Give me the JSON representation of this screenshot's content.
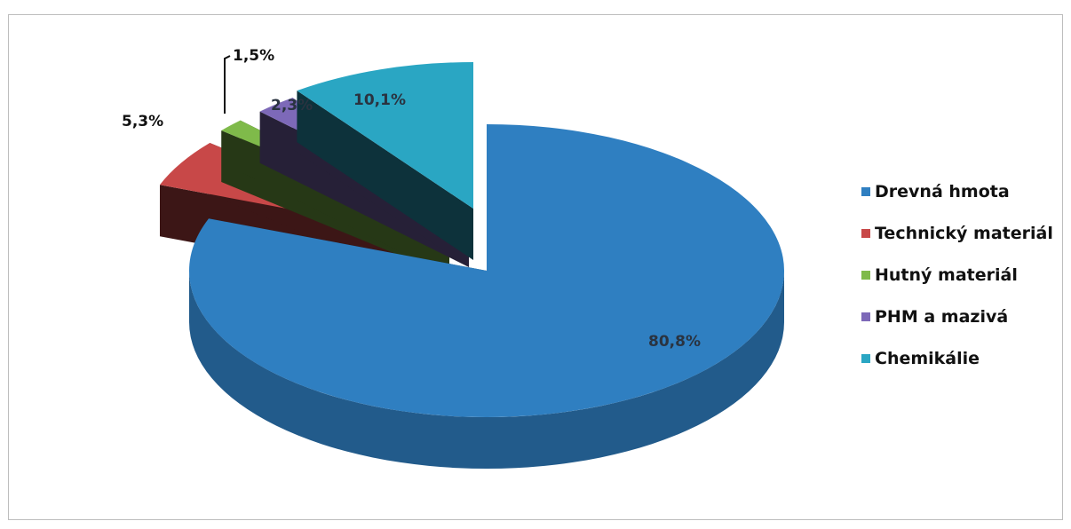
{
  "chart_data": {
    "type": "pie",
    "title": "",
    "categories": [
      "Drevná hmota",
      "Technický materiál",
      "Hutný materiál",
      "PHM a mazivá",
      "Chemikálie"
    ],
    "values": [
      80.8,
      5.3,
      1.5,
      2.3,
      10.1
    ],
    "labels": [
      "80,8%",
      "5,3%",
      "1,5%",
      "2,3%",
      "10,1%"
    ],
    "colors": [
      "#2f7fc1",
      "#c84848",
      "#7fba4a",
      "#7d69b8",
      "#2aa6c3"
    ],
    "exploded": true,
    "three_d": true,
    "legend": {
      "position": "right",
      "items": [
        {
          "label": "Drevná hmota",
          "color": "#2f7fc1"
        },
        {
          "label": "Technický materiál",
          "color": "#c84848"
        },
        {
          "label": "Hutný materiál",
          "color": "#7fba4a"
        },
        {
          "label": "PHM a mazivá",
          "color": "#7d69b8"
        },
        {
          "label": "Chemikálie",
          "color": "#2aa6c3"
        }
      ]
    }
  }
}
